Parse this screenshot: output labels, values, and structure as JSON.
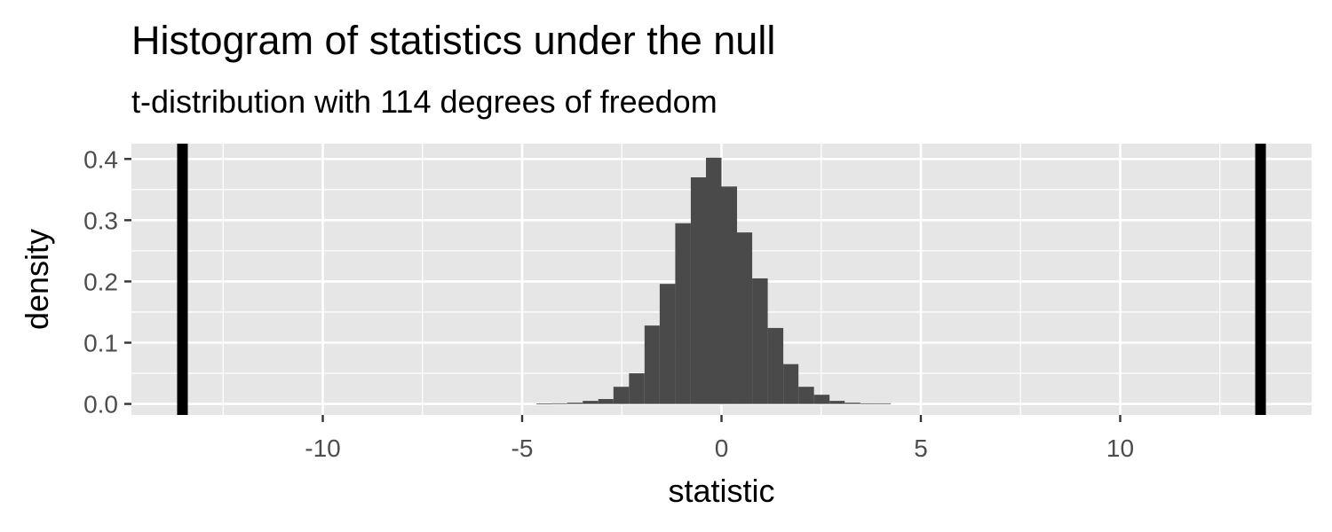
{
  "chart_data": {
    "type": "bar",
    "title": "Histogram of statistics under the null",
    "subtitle": "t-distribution with 114 degrees of freedom",
    "xlabel": "statistic",
    "ylabel": "density",
    "xlim": [
      -14.8,
      14.8
    ],
    "ylim": [
      -0.018,
      0.425
    ],
    "x_ticks": [
      -10,
      -5,
      0,
      5,
      10
    ],
    "x_tick_labels": [
      "-10",
      "-5",
      "0",
      "5",
      "10"
    ],
    "y_ticks": [
      0.0,
      0.1,
      0.2,
      0.3,
      0.4
    ],
    "y_tick_labels": [
      "0.0",
      "0.1",
      "0.2",
      "0.3",
      "0.4"
    ],
    "grid": true,
    "legend": "none",
    "bar_color": "#4a4a4a",
    "panel_color": "#e6e6e6",
    "bin_width": 0.387,
    "bins": [
      {
        "x0": -4.64,
        "x1": -4.25,
        "density": 0.0005
      },
      {
        "x0": -4.25,
        "x1": -3.87,
        "density": 0.001
      },
      {
        "x0": -3.87,
        "x1": -3.48,
        "density": 0.002
      },
      {
        "x0": -3.48,
        "x1": -3.09,
        "density": 0.005
      },
      {
        "x0": -3.09,
        "x1": -2.71,
        "density": 0.008
      },
      {
        "x0": -2.71,
        "x1": -2.32,
        "density": 0.028
      },
      {
        "x0": -2.32,
        "x1": -1.93,
        "density": 0.05
      },
      {
        "x0": -1.93,
        "x1": -1.55,
        "density": 0.128
      },
      {
        "x0": -1.55,
        "x1": -1.16,
        "density": 0.196
      },
      {
        "x0": -1.16,
        "x1": -0.77,
        "density": 0.295
      },
      {
        "x0": -0.77,
        "x1": -0.39,
        "density": 0.37
      },
      {
        "x0": -0.39,
        "x1": 0.0,
        "density": 0.402
      },
      {
        "x0": 0.0,
        "x1": 0.39,
        "density": 0.355
      },
      {
        "x0": 0.39,
        "x1": 0.77,
        "density": 0.28
      },
      {
        "x0": 0.77,
        "x1": 1.16,
        "density": 0.205
      },
      {
        "x0": 1.16,
        "x1": 1.55,
        "density": 0.124
      },
      {
        "x0": 1.55,
        "x1": 1.93,
        "density": 0.065
      },
      {
        "x0": 1.93,
        "x1": 2.32,
        "density": 0.028
      },
      {
        "x0": 2.32,
        "x1": 2.71,
        "density": 0.015
      },
      {
        "x0": 2.71,
        "x1": 3.09,
        "density": 0.005
      },
      {
        "x0": 3.09,
        "x1": 3.48,
        "density": 0.002
      },
      {
        "x0": 3.48,
        "x1": 3.87,
        "density": 0.001
      },
      {
        "x0": 3.87,
        "x1": 4.25,
        "density": 0.001
      }
    ],
    "reference_lines": [
      {
        "x": -13.52
      },
      {
        "x": 13.52
      }
    ],
    "reference_line_color": "#000000"
  }
}
